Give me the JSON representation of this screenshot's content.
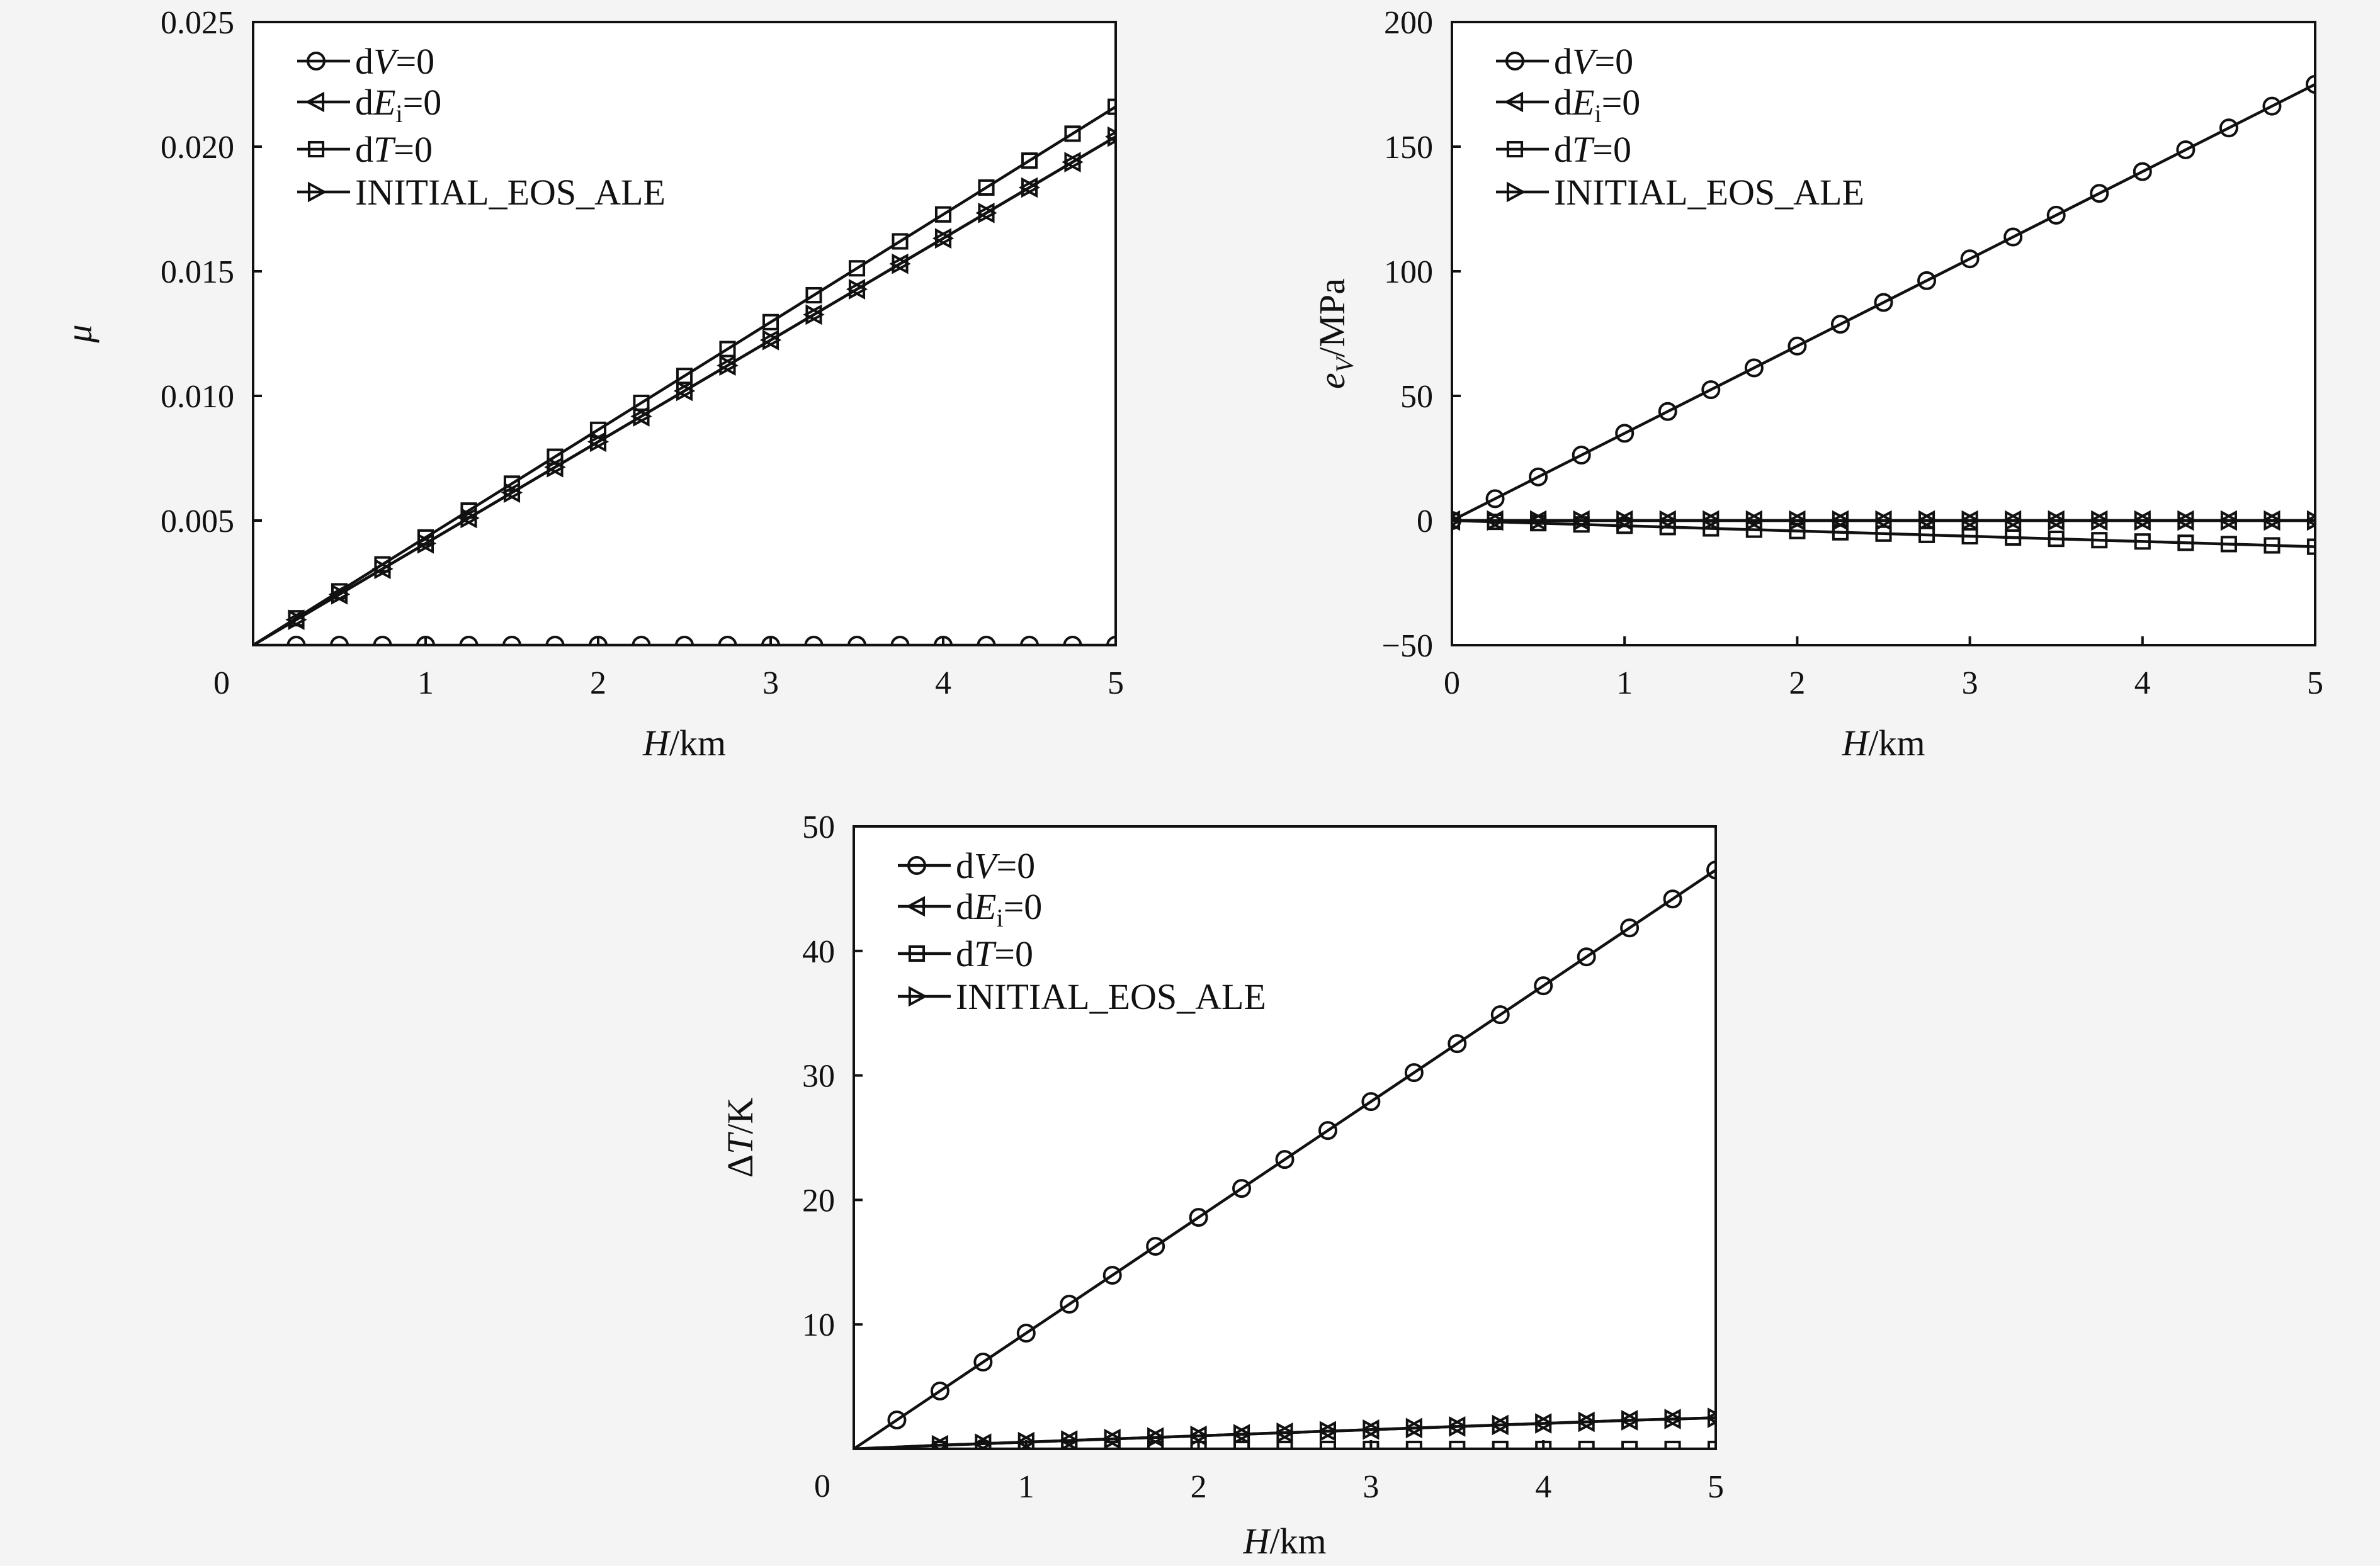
{
  "legend": [
    {
      "marker": "circle",
      "prefix": "d",
      "var": "V",
      "sub": "",
      "suffix": "=0"
    },
    {
      "marker": "tri-left",
      "prefix": "d",
      "var": "E",
      "sub": "i",
      "suffix": "=0"
    },
    {
      "marker": "square",
      "prefix": "d",
      "var": "T",
      "sub": "",
      "suffix": "=0"
    },
    {
      "marker": "tri-right",
      "prefix": "",
      "var": "",
      "sub": "",
      "suffix": "INITIAL_EOS_ALE"
    }
  ],
  "chart_data": [
    {
      "type": "line",
      "xlabel": {
        "var": "H",
        "unit": "/km"
      },
      "ylabel": {
        "var": "μ",
        "sub": "",
        "unit": ""
      },
      "xlim": [
        0,
        5
      ],
      "ylim": [
        0,
        0.025
      ],
      "xticks": [
        0,
        1,
        2,
        3,
        4,
        5
      ],
      "xtick_labels": [
        "0",
        "1",
        "2",
        "3",
        "4",
        "5"
      ],
      "yticks": [
        0.005,
        0.01,
        0.015,
        0.02,
        0.025
      ],
      "ytick_labels": [
        "0.005",
        "0.010",
        "0.015",
        "0.020",
        "0.025"
      ],
      "series": [
        {
          "name": "dV=0",
          "marker": "circle",
          "x": [
            0,
            5
          ],
          "y": [
            0,
            0
          ],
          "marker_x": [
            0.25,
            0.5,
            0.75,
            1,
            1.25,
            1.5,
            1.75,
            2,
            2.25,
            2.5,
            2.75,
            3,
            3.25,
            3.5,
            3.75,
            4,
            4.25,
            4.5,
            4.75,
            5
          ]
        },
        {
          "name": "dEi=0",
          "marker": "tri-left",
          "x": [
            0,
            5
          ],
          "y": [
            0,
            0.0204
          ],
          "marker_x": [
            0.25,
            0.5,
            0.75,
            1,
            1.25,
            1.5,
            1.75,
            2,
            2.25,
            2.5,
            2.75,
            3,
            3.25,
            3.5,
            3.75,
            4,
            4.25,
            4.5,
            4.75,
            5
          ]
        },
        {
          "name": "dT=0",
          "marker": "square",
          "x": [
            0,
            5
          ],
          "y": [
            0,
            0.0216
          ],
          "marker_x": [
            0.25,
            0.5,
            0.75,
            1,
            1.25,
            1.5,
            1.75,
            2,
            2.25,
            2.5,
            2.75,
            3,
            3.25,
            3.5,
            3.75,
            4,
            4.25,
            4.5,
            4.75,
            5
          ]
        },
        {
          "name": "INITIAL_EOS_ALE",
          "marker": "tri-right",
          "x": [
            0,
            5
          ],
          "y": [
            0,
            0.0204
          ],
          "marker_x": [
            0.25,
            0.5,
            0.75,
            1,
            1.25,
            1.5,
            1.75,
            2,
            2.25,
            2.5,
            2.75,
            3,
            3.25,
            3.5,
            3.75,
            4,
            4.25,
            4.5,
            4.75,
            5
          ]
        }
      ]
    },
    {
      "type": "line",
      "xlabel": {
        "var": "H",
        "unit": "/km"
      },
      "ylabel": {
        "var": "e",
        "sub": "V",
        "unit": "/MPa"
      },
      "xlim": [
        0,
        5
      ],
      "ylim": [
        -50,
        200
      ],
      "xticks": [
        0,
        1,
        2,
        3,
        4,
        5
      ],
      "xtick_labels": [
        "0",
        "1",
        "2",
        "3",
        "4",
        "5"
      ],
      "yticks": [
        -50,
        0,
        50,
        100,
        150,
        200
      ],
      "ytick_labels": [
        "−50",
        "0",
        "50",
        "100",
        "150",
        "200"
      ],
      "series": [
        {
          "name": "dV=0",
          "marker": "circle",
          "x": [
            0,
            5
          ],
          "y": [
            0,
            175
          ],
          "marker_x": [
            0,
            0.25,
            0.5,
            0.75,
            1,
            1.25,
            1.5,
            1.75,
            2,
            2.25,
            2.5,
            2.75,
            3,
            3.25,
            3.5,
            3.75,
            4,
            4.25,
            4.5,
            4.75,
            5
          ]
        },
        {
          "name": "dEi=0",
          "marker": "tri-left",
          "x": [
            0,
            5
          ],
          "y": [
            0,
            0
          ],
          "marker_x": [
            0,
            0.25,
            0.5,
            0.75,
            1,
            1.25,
            1.5,
            1.75,
            2,
            2.25,
            2.5,
            2.75,
            3,
            3.25,
            3.5,
            3.75,
            4,
            4.25,
            4.5,
            4.75,
            5
          ]
        },
        {
          "name": "dT=0",
          "marker": "square",
          "x": [
            0,
            5
          ],
          "y": [
            0,
            -10.5
          ],
          "marker_x": [
            0,
            0.25,
            0.5,
            0.75,
            1,
            1.25,
            1.5,
            1.75,
            2,
            2.25,
            2.5,
            2.75,
            3,
            3.25,
            3.5,
            3.75,
            4,
            4.25,
            4.5,
            4.75,
            5
          ]
        },
        {
          "name": "INITIAL_EOS_ALE",
          "marker": "tri-right",
          "x": [
            0,
            5
          ],
          "y": [
            0,
            0
          ],
          "marker_x": [
            0,
            0.25,
            0.5,
            0.75,
            1,
            1.25,
            1.5,
            1.75,
            2,
            2.25,
            2.5,
            2.75,
            3,
            3.25,
            3.5,
            3.75,
            4,
            4.25,
            4.5,
            4.75,
            5
          ]
        }
      ]
    },
    {
      "type": "line",
      "xlabel": {
        "var": "H",
        "unit": "/km"
      },
      "ylabel": {
        "var": "ΔT",
        "sub": "",
        "unit": "/K"
      },
      "xlim": [
        0,
        5
      ],
      "ylim": [
        0,
        50
      ],
      "xticks": [
        0,
        1,
        2,
        3,
        4,
        5
      ],
      "xtick_labels": [
        "0",
        "1",
        "2",
        "3",
        "4",
        "5"
      ],
      "yticks": [
        10,
        20,
        30,
        40,
        50
      ],
      "ytick_labels": [
        "10",
        "20",
        "30",
        "40",
        "50"
      ],
      "series": [
        {
          "name": "dV=0",
          "marker": "circle",
          "x": [
            0,
            5
          ],
          "y": [
            0,
            46.5
          ],
          "marker_x": [
            0.25,
            0.5,
            0.75,
            1,
            1.25,
            1.5,
            1.75,
            2,
            2.25,
            2.5,
            2.75,
            3,
            3.25,
            3.5,
            3.75,
            4,
            4.25,
            4.5,
            4.75,
            5
          ]
        },
        {
          "name": "dEi=0",
          "marker": "tri-left",
          "x": [
            0,
            0.5,
            1,
            1.5,
            2,
            2.5,
            3,
            3.5,
            4,
            4.5,
            5
          ],
          "y": [
            0,
            0.3,
            0.55,
            0.8,
            1.05,
            1.3,
            1.55,
            1.8,
            2.05,
            2.3,
            2.5
          ],
          "marker_x": [
            0.5,
            0.75,
            1,
            1.25,
            1.5,
            1.75,
            2,
            2.25,
            2.5,
            2.75,
            3,
            3.25,
            3.5,
            3.75,
            4,
            4.25,
            4.5,
            4.75,
            5
          ]
        },
        {
          "name": "dT=0",
          "marker": "square",
          "x": [
            0,
            5
          ],
          "y": [
            0,
            0
          ],
          "marker_x": [
            0.5,
            0.75,
            1,
            1.25,
            1.5,
            1.75,
            2,
            2.25,
            2.5,
            2.75,
            3,
            3.25,
            3.5,
            3.75,
            4,
            4.25,
            4.5,
            4.75,
            5
          ]
        },
        {
          "name": "INITIAL_EOS_ALE",
          "marker": "tri-right",
          "x": [
            0,
            0.5,
            1,
            1.5,
            2,
            2.5,
            3,
            3.5,
            4,
            4.5,
            5
          ],
          "y": [
            0,
            0.3,
            0.55,
            0.8,
            1.05,
            1.3,
            1.55,
            1.8,
            2.05,
            2.3,
            2.5
          ],
          "marker_x": [
            0.5,
            0.75,
            1,
            1.25,
            1.5,
            1.75,
            2,
            2.25,
            2.5,
            2.75,
            3,
            3.25,
            3.5,
            3.75,
            4,
            4.25,
            4.5,
            4.75,
            5
          ]
        }
      ]
    }
  ]
}
